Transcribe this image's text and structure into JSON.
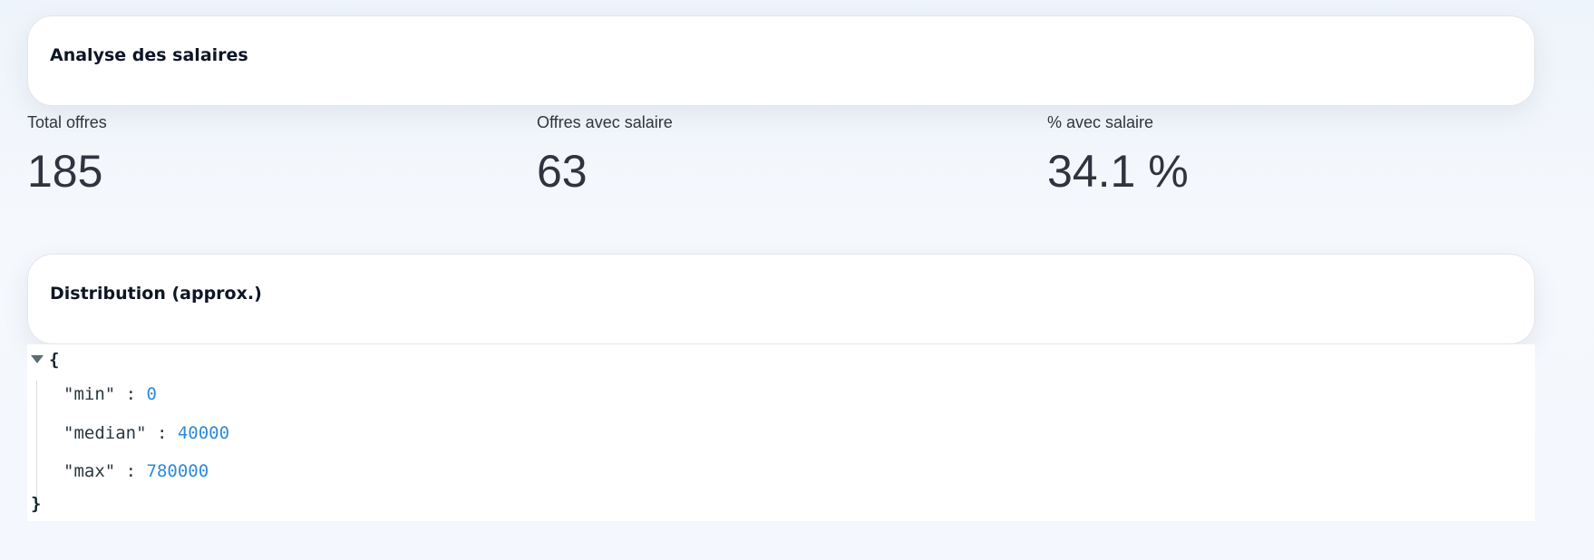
{
  "header": {
    "title": "Analyse des salaires"
  },
  "stats": [
    {
      "label": "Total offres",
      "value": "185"
    },
    {
      "label": "Offres avec salaire",
      "value": "63"
    },
    {
      "label": "% avec salaire",
      "value": "34.1 %"
    }
  ],
  "distribution": {
    "title": "Distribution (approx.)",
    "open_brace": "{",
    "close_brace": "}",
    "entries": [
      {
        "key": "\"min\"",
        "value": "0"
      },
      {
        "key": "\"median\"",
        "value": "40000"
      },
      {
        "key": "\"max\"",
        "value": "780000"
      }
    ]
  }
}
